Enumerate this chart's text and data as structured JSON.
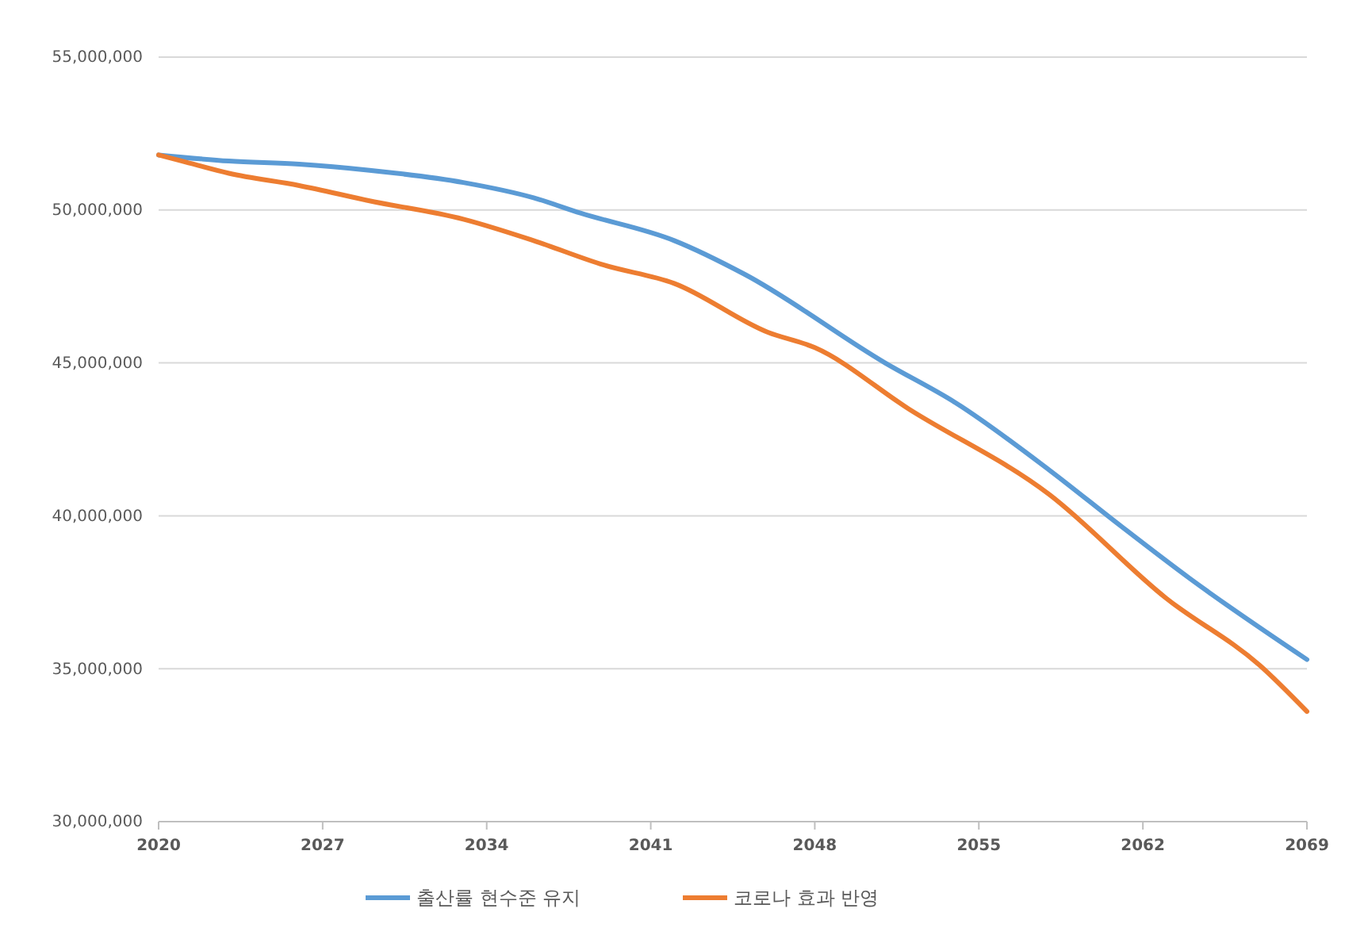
{
  "chart_data": {
    "type": "line",
    "xlim": [
      2020,
      2069
    ],
    "xticks": [
      2020,
      2027,
      2034,
      2041,
      2048,
      2055,
      2062,
      2069
    ],
    "ylim": [
      30000000,
      55000000
    ],
    "yticks": [
      {
        "value": 30000000,
        "label": "30,000,000"
      },
      {
        "value": 35000000,
        "label": "35,000,000"
      },
      {
        "value": 40000000,
        "label": "40,000,000"
      },
      {
        "value": 45000000,
        "label": "45,000,000"
      },
      {
        "value": 50000000,
        "label": "50,000,000"
      },
      {
        "value": 55000000,
        "label": "55,000,000"
      }
    ],
    "grid": "y",
    "legend": "bottom",
    "marker": "none",
    "line_style": "solid",
    "series": [
      {
        "name": "출산률 현수준 유지",
        "color": "#5b9bd5",
        "x": [
          2020,
          2023,
          2026,
          2029,
          2033,
          2036,
          2038,
          2042,
          2045,
          2051,
          2054,
          2058,
          2061,
          2064,
          2069
        ],
        "values": [
          51800000,
          51600000,
          51500000,
          51300000,
          50900000,
          50400000,
          49900000,
          49000000,
          47900000,
          45000000,
          43700000,
          41500000,
          39700000,
          37950000,
          35300000
        ]
      },
      {
        "name": "코로나 효과 반영",
        "color": "#ed7d31",
        "x": [
          2020,
          2021,
          2023,
          2026,
          2029,
          2033,
          2036,
          2039,
          2042,
          2046,
          2048,
          2052,
          2058,
          2063,
          2067,
          2069
        ],
        "values": [
          51800000,
          51600000,
          51200000,
          50800000,
          50300000,
          49700000,
          49000000,
          48200000,
          47600000,
          46000000,
          45500000,
          43500000,
          40700000,
          37300000,
          35100000,
          33600000
        ]
      }
    ]
  }
}
